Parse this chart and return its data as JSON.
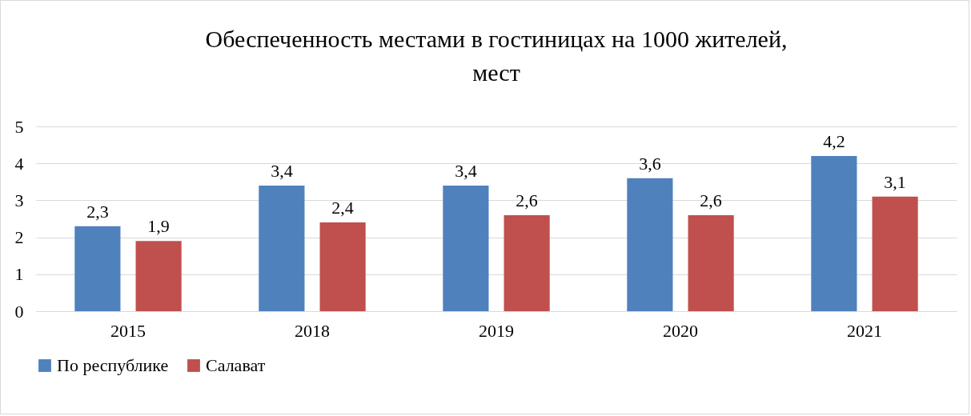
{
  "chart_data": {
    "type": "bar",
    "title": "Обеспеченность местами в гостиницах на 1000 жителей, мест",
    "categories": [
      "2015",
      "2018",
      "2019",
      "2020",
      "2021"
    ],
    "series": [
      {
        "name": "По республике",
        "color": "#4f81bd",
        "values": [
          2.3,
          3.4,
          3.4,
          3.6,
          4.2
        ],
        "value_labels": [
          "2,3",
          "3,4",
          "3,4",
          "3,6",
          "4,2"
        ]
      },
      {
        "name": "Салават",
        "color": "#c0504d",
        "values": [
          1.9,
          2.4,
          2.6,
          2.6,
          3.1
        ],
        "value_labels": [
          "1,9",
          "2,4",
          "2,6",
          "2,6",
          "3,1"
        ]
      }
    ],
    "ylim": [
      0,
      5
    ],
    "yticks": [
      0,
      1,
      2,
      3,
      4,
      5
    ],
    "grid": "y",
    "legend": "bottom"
  }
}
